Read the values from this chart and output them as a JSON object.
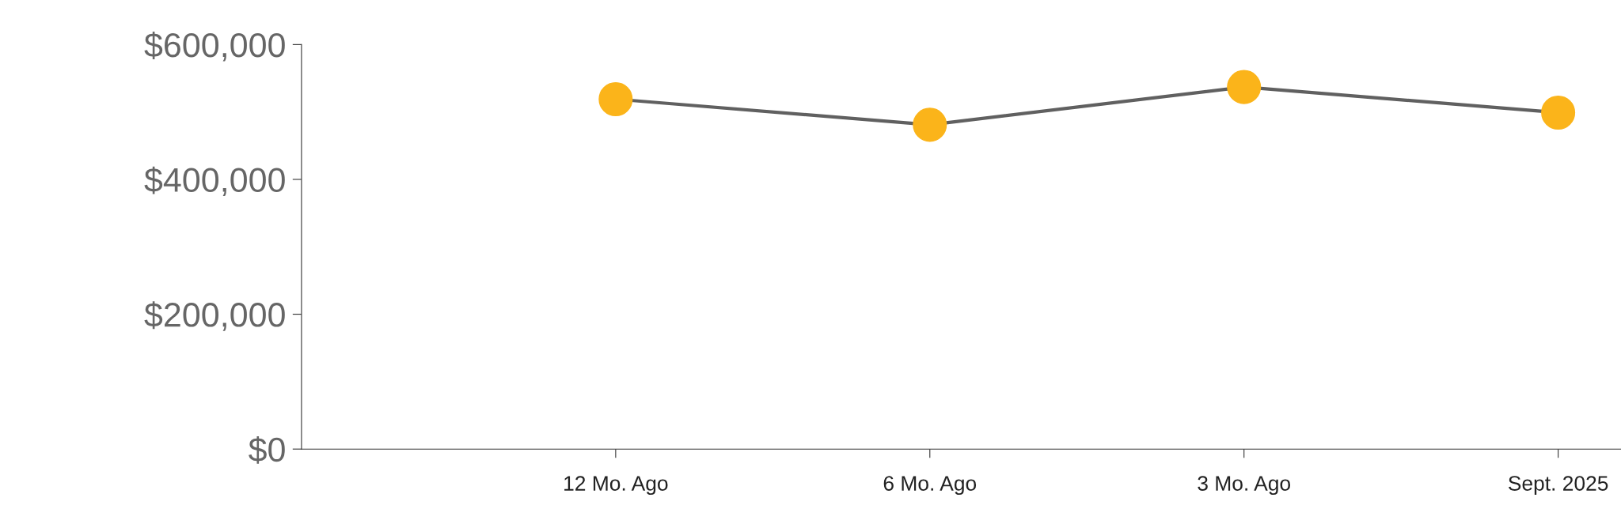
{
  "chart_data": {
    "type": "line",
    "categories": [
      "12 Mo. Ago",
      "6 Mo. Ago",
      "3 Mo. Ago",
      "Sept. 2025"
    ],
    "series": [
      {
        "color": "#606060",
        "colors": [
          "#fbb41a",
          "#fbb41a",
          "#fbb41a",
          "#fbb41a"
        ],
        "values": [
          519000,
          481000,
          537000,
          499000
        ]
      }
    ],
    "ylim": [
      0,
      600000
    ],
    "yticks": [
      {
        "value": 0,
        "label": "$0"
      },
      {
        "value": 200000,
        "label": "$200,000"
      },
      {
        "value": 400000,
        "label": "$400,000"
      },
      {
        "value": 600000,
        "label": "$600,000"
      }
    ],
    "grid": false,
    "legend": false,
    "marker": "circle",
    "line_style": "solid"
  }
}
